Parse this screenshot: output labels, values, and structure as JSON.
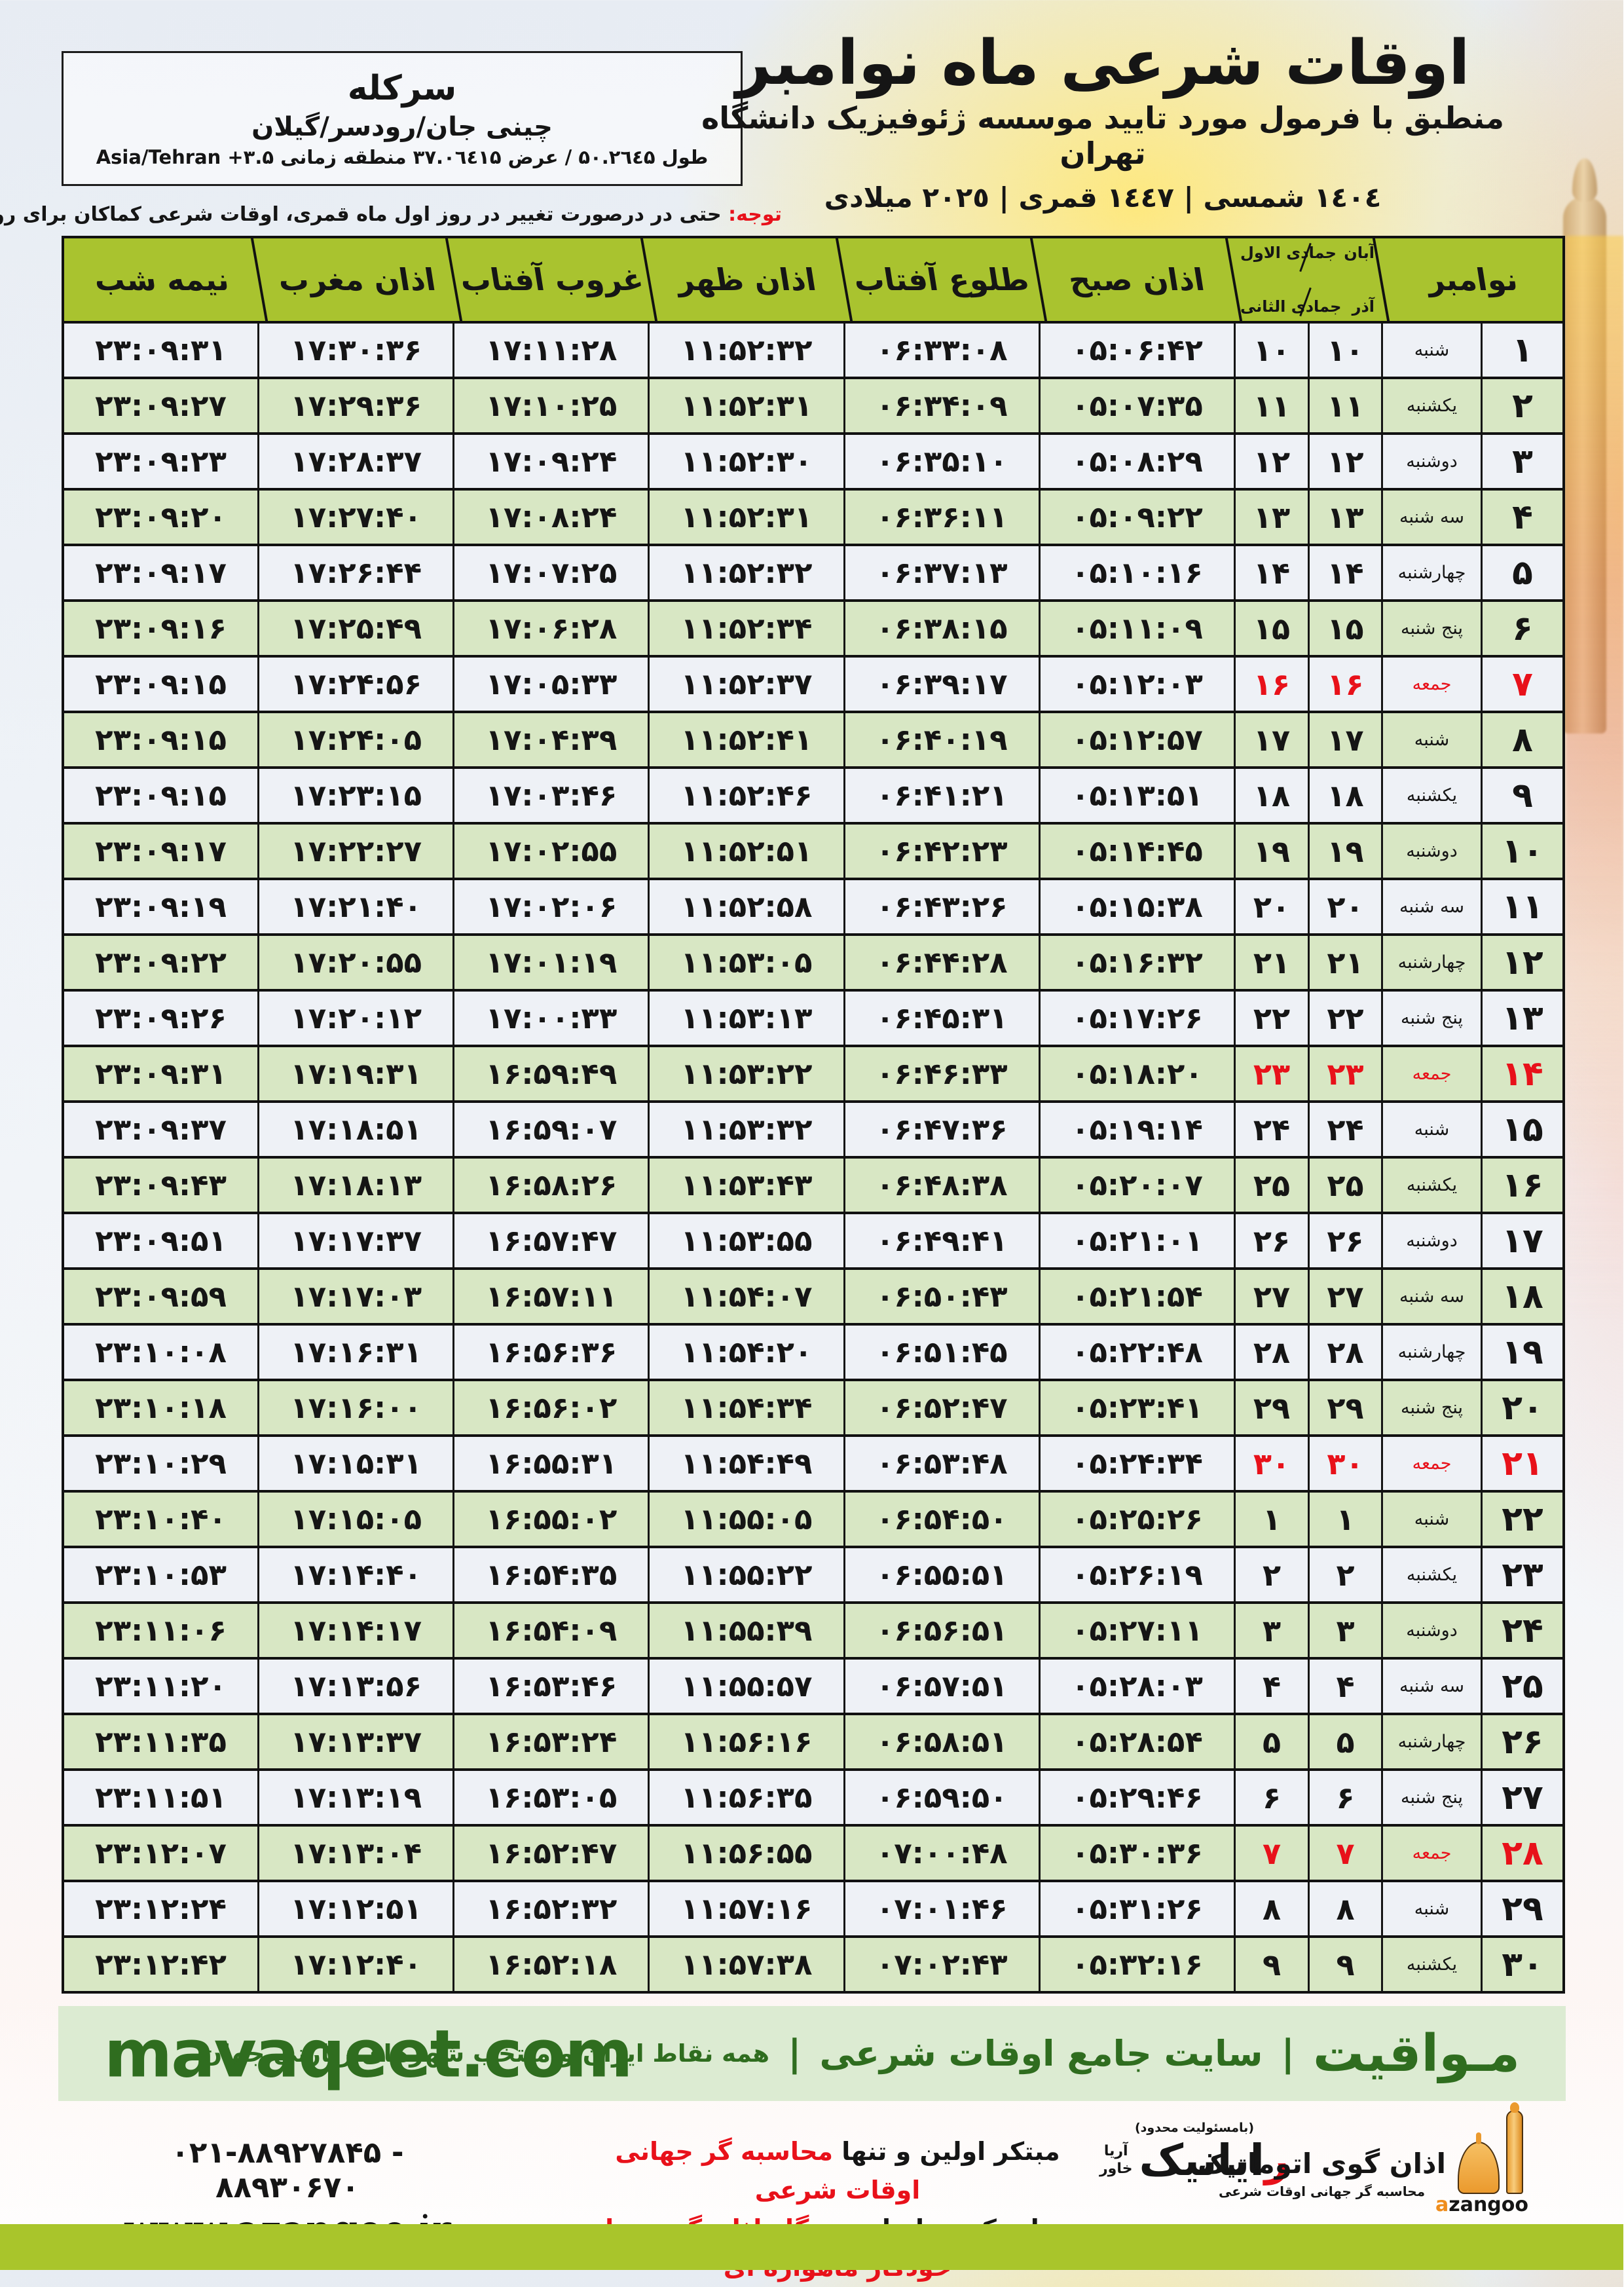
{
  "colors": {
    "friday_red": "#e8111a",
    "header_green": "#a9c32f",
    "row_green": "#d8e7c4",
    "row_light": "#eef1f6",
    "banner_green": "#dcebd2",
    "banner_text": "#2f6d1f",
    "bottom_bar": "#a9c52b"
  },
  "header": {
    "title": "اوقات شرعی ماه نوامبر",
    "subtitle": "منطبق با فرمول مورد تایید موسسه ژئوفیزیک دانشگاه تهران",
    "dates": "١٤٠٤ شمسی | ١٤٤٧ قمری | ٢٠٢٥ میلادی"
  },
  "location_box": {
    "city": "سرکله",
    "region": "چینی جان/رودسر/گیلان",
    "coords_fa": "طول ۵۰.۲٦٤۵ / عرض ۳۷.۰٦٤۱۵ منطقه زمانی ",
    "coords_tz": "Asia/Tehran +۳.۵"
  },
  "notice": {
    "label": "توجه:",
    "text": " حتی در درصورت تغییر در روز اول ماه قمری، اوقات شرعی کماکان برای روزهای شمسی و میلادی معتبر است."
  },
  "table": {
    "columns": {
      "nov": "نوامبر",
      "solar_top": "آبان",
      "lunar_top": "جمادی الاول",
      "solar_bottom": "آذر",
      "lunar_bottom": "جمادی الثانی",
      "fajr": "اذان صبح",
      "sunrise": "طلوع آفتاب",
      "noon": "اذان ظهر",
      "sunset": "غروب آفتاب",
      "maghrib": "اذان مغرب",
      "midnight": "نیمه شب"
    },
    "rows": [
      {
        "d": "۱",
        "w": "شنبه",
        "s": "۱۰",
        "l": "۱۰",
        "fajr": "۰۵:۰۶:۴۲",
        "rise": "۰۶:۳۳:۰۸",
        "noon": "۱۱:۵۲:۳۲",
        "set": "۱۷:۱۱:۲۸",
        "maghrib": "۱۷:۳۰:۳۶",
        "mid": "۲۳:۰۹:۳۱",
        "fri": false
      },
      {
        "d": "۲",
        "w": "یکشنبه",
        "s": "۱۱",
        "l": "۱۱",
        "fajr": "۰۵:۰۷:۳۵",
        "rise": "۰۶:۳۴:۰۹",
        "noon": "۱۱:۵۲:۳۱",
        "set": "۱۷:۱۰:۲۵",
        "maghrib": "۱۷:۲۹:۳۶",
        "mid": "۲۳:۰۹:۲۷",
        "fri": false
      },
      {
        "d": "۳",
        "w": "دوشنبه",
        "s": "۱۲",
        "l": "۱۲",
        "fajr": "۰۵:۰۸:۲۹",
        "rise": "۰۶:۳۵:۱۰",
        "noon": "۱۱:۵۲:۳۰",
        "set": "۱۷:۰۹:۲۴",
        "maghrib": "۱۷:۲۸:۳۷",
        "mid": "۲۳:۰۹:۲۳",
        "fri": false
      },
      {
        "d": "۴",
        "w": "سه شنبه",
        "s": "۱۳",
        "l": "۱۳",
        "fajr": "۰۵:۰۹:۲۲",
        "rise": "۰۶:۳۶:۱۱",
        "noon": "۱۱:۵۲:۳۱",
        "set": "۱۷:۰۸:۲۴",
        "maghrib": "۱۷:۲۷:۴۰",
        "mid": "۲۳:۰۹:۲۰",
        "fri": false
      },
      {
        "d": "۵",
        "w": "چهارشنبه",
        "s": "۱۴",
        "l": "۱۴",
        "fajr": "۰۵:۱۰:۱۶",
        "rise": "۰۶:۳۷:۱۳",
        "noon": "۱۱:۵۲:۳۲",
        "set": "۱۷:۰۷:۲۵",
        "maghrib": "۱۷:۲۶:۴۴",
        "mid": "۲۳:۰۹:۱۷",
        "fri": false
      },
      {
        "d": "۶",
        "w": "پنج شنبه",
        "s": "۱۵",
        "l": "۱۵",
        "fajr": "۰۵:۱۱:۰۹",
        "rise": "۰۶:۳۸:۱۵",
        "noon": "۱۱:۵۲:۳۴",
        "set": "۱۷:۰۶:۲۸",
        "maghrib": "۱۷:۲۵:۴۹",
        "mid": "۲۳:۰۹:۱۶",
        "fri": false
      },
      {
        "d": "۷",
        "w": "جمعه",
        "s": "۱۶",
        "l": "۱۶",
        "fajr": "۰۵:۱۲:۰۳",
        "rise": "۰۶:۳۹:۱۷",
        "noon": "۱۱:۵۲:۳۷",
        "set": "۱۷:۰۵:۳۳",
        "maghrib": "۱۷:۲۴:۵۶",
        "mid": "۲۳:۰۹:۱۵",
        "fri": true
      },
      {
        "d": "۸",
        "w": "شنبه",
        "s": "۱۷",
        "l": "۱۷",
        "fajr": "۰۵:۱۲:۵۷",
        "rise": "۰۶:۴۰:۱۹",
        "noon": "۱۱:۵۲:۴۱",
        "set": "۱۷:۰۴:۳۹",
        "maghrib": "۱۷:۲۴:۰۵",
        "mid": "۲۳:۰۹:۱۵",
        "fri": false
      },
      {
        "d": "۹",
        "w": "یکشنبه",
        "s": "۱۸",
        "l": "۱۸",
        "fajr": "۰۵:۱۳:۵۱",
        "rise": "۰۶:۴۱:۲۱",
        "noon": "۱۱:۵۲:۴۶",
        "set": "۱۷:۰۳:۴۶",
        "maghrib": "۱۷:۲۳:۱۵",
        "mid": "۲۳:۰۹:۱۵",
        "fri": false
      },
      {
        "d": "۱۰",
        "w": "دوشنبه",
        "s": "۱۹",
        "l": "۱۹",
        "fajr": "۰۵:۱۴:۴۵",
        "rise": "۰۶:۴۲:۲۳",
        "noon": "۱۱:۵۲:۵۱",
        "set": "۱۷:۰۲:۵۵",
        "maghrib": "۱۷:۲۲:۲۷",
        "mid": "۲۳:۰۹:۱۷",
        "fri": false
      },
      {
        "d": "۱۱",
        "w": "سه شنبه",
        "s": "۲۰",
        "l": "۲۰",
        "fajr": "۰۵:۱۵:۳۸",
        "rise": "۰۶:۴۳:۲۶",
        "noon": "۱۱:۵۲:۵۸",
        "set": "۱۷:۰۲:۰۶",
        "maghrib": "۱۷:۲۱:۴۰",
        "mid": "۲۳:۰۹:۱۹",
        "fri": false
      },
      {
        "d": "۱۲",
        "w": "چهارشنبه",
        "s": "۲۱",
        "l": "۲۱",
        "fajr": "۰۵:۱۶:۳۲",
        "rise": "۰۶:۴۴:۲۸",
        "noon": "۱۱:۵۳:۰۵",
        "set": "۱۷:۰۱:۱۹",
        "maghrib": "۱۷:۲۰:۵۵",
        "mid": "۲۳:۰۹:۲۲",
        "fri": false
      },
      {
        "d": "۱۳",
        "w": "پنج شنبه",
        "s": "۲۲",
        "l": "۲۲",
        "fajr": "۰۵:۱۷:۲۶",
        "rise": "۰۶:۴۵:۳۱",
        "noon": "۱۱:۵۳:۱۳",
        "set": "۱۷:۰۰:۳۳",
        "maghrib": "۱۷:۲۰:۱۲",
        "mid": "۲۳:۰۹:۲۶",
        "fri": false
      },
      {
        "d": "۱۴",
        "w": "جمعه",
        "s": "۲۳",
        "l": "۲۳",
        "fajr": "۰۵:۱۸:۲۰",
        "rise": "۰۶:۴۶:۳۳",
        "noon": "۱۱:۵۳:۲۲",
        "set": "۱۶:۵۹:۴۹",
        "maghrib": "۱۷:۱۹:۳۱",
        "mid": "۲۳:۰۹:۳۱",
        "fri": true
      },
      {
        "d": "۱۵",
        "w": "شنبه",
        "s": "۲۴",
        "l": "۲۴",
        "fajr": "۰۵:۱۹:۱۴",
        "rise": "۰۶:۴۷:۳۶",
        "noon": "۱۱:۵۳:۳۲",
        "set": "۱۶:۵۹:۰۷",
        "maghrib": "۱۷:۱۸:۵۱",
        "mid": "۲۳:۰۹:۳۷",
        "fri": false
      },
      {
        "d": "۱۶",
        "w": "یکشنبه",
        "s": "۲۵",
        "l": "۲۵",
        "fajr": "۰۵:۲۰:۰۷",
        "rise": "۰۶:۴۸:۳۸",
        "noon": "۱۱:۵۳:۴۳",
        "set": "۱۶:۵۸:۲۶",
        "maghrib": "۱۷:۱۸:۱۳",
        "mid": "۲۳:۰۹:۴۳",
        "fri": false
      },
      {
        "d": "۱۷",
        "w": "دوشنبه",
        "s": "۲۶",
        "l": "۲۶",
        "fajr": "۰۵:۲۱:۰۱",
        "rise": "۰۶:۴۹:۴۱",
        "noon": "۱۱:۵۳:۵۵",
        "set": "۱۶:۵۷:۴۷",
        "maghrib": "۱۷:۱۷:۳۷",
        "mid": "۲۳:۰۹:۵۱",
        "fri": false
      },
      {
        "d": "۱۸",
        "w": "سه شنبه",
        "s": "۲۷",
        "l": "۲۷",
        "fajr": "۰۵:۲۱:۵۴",
        "rise": "۰۶:۵۰:۴۳",
        "noon": "۱۱:۵۴:۰۷",
        "set": "۱۶:۵۷:۱۱",
        "maghrib": "۱۷:۱۷:۰۳",
        "mid": "۲۳:۰۹:۵۹",
        "fri": false
      },
      {
        "d": "۱۹",
        "w": "چهارشنبه",
        "s": "۲۸",
        "l": "۲۸",
        "fajr": "۰۵:۲۲:۴۸",
        "rise": "۰۶:۵۱:۴۵",
        "noon": "۱۱:۵۴:۲۰",
        "set": "۱۶:۵۶:۳۶",
        "maghrib": "۱۷:۱۶:۳۱",
        "mid": "۲۳:۱۰:۰۸",
        "fri": false
      },
      {
        "d": "۲۰",
        "w": "پنج شنبه",
        "s": "۲۹",
        "l": "۲۹",
        "fajr": "۰۵:۲۳:۴۱",
        "rise": "۰۶:۵۲:۴۷",
        "noon": "۱۱:۵۴:۳۴",
        "set": "۱۶:۵۶:۰۲",
        "maghrib": "۱۷:۱۶:۰۰",
        "mid": "۲۳:۱۰:۱۸",
        "fri": false
      },
      {
        "d": "۲۱",
        "w": "جمعه",
        "s": "۳۰",
        "l": "۳۰",
        "fajr": "۰۵:۲۴:۳۴",
        "rise": "۰۶:۵۳:۴۸",
        "noon": "۱۱:۵۴:۴۹",
        "set": "۱۶:۵۵:۳۱",
        "maghrib": "۱۷:۱۵:۳۱",
        "mid": "۲۳:۱۰:۲۹",
        "fri": true
      },
      {
        "d": "۲۲",
        "w": "شنبه",
        "s": "۱",
        "l": "۱",
        "fajr": "۰۵:۲۵:۲۶",
        "rise": "۰۶:۵۴:۵۰",
        "noon": "۱۱:۵۵:۰۵",
        "set": "۱۶:۵۵:۰۲",
        "maghrib": "۱۷:۱۵:۰۵",
        "mid": "۲۳:۱۰:۴۰",
        "fri": false
      },
      {
        "d": "۲۳",
        "w": "یکشنبه",
        "s": "۲",
        "l": "۲",
        "fajr": "۰۵:۲۶:۱۹",
        "rise": "۰۶:۵۵:۵۱",
        "noon": "۱۱:۵۵:۲۲",
        "set": "۱۶:۵۴:۳۵",
        "maghrib": "۱۷:۱۴:۴۰",
        "mid": "۲۳:۱۰:۵۳",
        "fri": false
      },
      {
        "d": "۲۴",
        "w": "دوشنبه",
        "s": "۳",
        "l": "۳",
        "fajr": "۰۵:۲۷:۱۱",
        "rise": "۰۶:۵۶:۵۱",
        "noon": "۱۱:۵۵:۳۹",
        "set": "۱۶:۵۴:۰۹",
        "maghrib": "۱۷:۱۴:۱۷",
        "mid": "۲۳:۱۱:۰۶",
        "fri": false
      },
      {
        "d": "۲۵",
        "w": "سه شنبه",
        "s": "۴",
        "l": "۴",
        "fajr": "۰۵:۲۸:۰۳",
        "rise": "۰۶:۵۷:۵۱",
        "noon": "۱۱:۵۵:۵۷",
        "set": "۱۶:۵۳:۴۶",
        "maghrib": "۱۷:۱۳:۵۶",
        "mid": "۲۳:۱۱:۲۰",
        "fri": false
      },
      {
        "d": "۲۶",
        "w": "چهارشنبه",
        "s": "۵",
        "l": "۵",
        "fajr": "۰۵:۲۸:۵۴",
        "rise": "۰۶:۵۸:۵۱",
        "noon": "۱۱:۵۶:۱۶",
        "set": "۱۶:۵۳:۲۴",
        "maghrib": "۱۷:۱۳:۳۷",
        "mid": "۲۳:۱۱:۳۵",
        "fri": false
      },
      {
        "d": "۲۷",
        "w": "پنج شنبه",
        "s": "۶",
        "l": "۶",
        "fajr": "۰۵:۲۹:۴۶",
        "rise": "۰۶:۵۹:۵۰",
        "noon": "۱۱:۵۶:۳۵",
        "set": "۱۶:۵۳:۰۵",
        "maghrib": "۱۷:۱۳:۱۹",
        "mid": "۲۳:۱۱:۵۱",
        "fri": false
      },
      {
        "d": "۲۸",
        "w": "جمعه",
        "s": "۷",
        "l": "۷",
        "fajr": "۰۵:۳۰:۳۶",
        "rise": "۰۷:۰۰:۴۸",
        "noon": "۱۱:۵۶:۵۵",
        "set": "۱۶:۵۲:۴۷",
        "maghrib": "۱۷:۱۳:۰۴",
        "mid": "۲۳:۱۲:۰۷",
        "fri": true
      },
      {
        "d": "۲۹",
        "w": "شنبه",
        "s": "۸",
        "l": "۸",
        "fajr": "۰۵:۳۱:۲۶",
        "rise": "۰۷:۰۱:۴۶",
        "noon": "۱۱:۵۷:۱۶",
        "set": "۱۶:۵۲:۳۲",
        "maghrib": "۱۷:۱۲:۵۱",
        "mid": "۲۳:۱۲:۲۴",
        "fri": false
      },
      {
        "d": "۳۰",
        "w": "یکشنبه",
        "s": "۹",
        "l": "۹",
        "fajr": "۰۵:۳۲:۱۶",
        "rise": "۰۷:۰۲:۴۳",
        "noon": "۱۱:۵۷:۳۸",
        "set": "۱۶:۵۲:۱۸",
        "maghrib": "۱۷:۱۲:۴۰",
        "mid": "۲۳:۱۲:۴۲",
        "fri": false
      }
    ]
  },
  "mavaqeet": {
    "latin": "mavaqeet.com",
    "fa1": "مـواقیت",
    "sep": "|",
    "fa2": "سایت جامع اوقات شرعی",
    "fa3": "همه نقاط ایران و منتخب شهرهای زیارتی جهان"
  },
  "footer": {
    "line1_black": "مبتکر اولین و تنها ",
    "line1_red": "محاسبه گر جهانی اوقات شرعی",
    "line2_black": "و تولید کننده انواع ",
    "line2_red": "دستگاه اذان گوی تمام خودکار ماهواره ای",
    "phone": "۰۲۱-۸۸۹۲۷۸۴۵ - ۸۸۹۳۰۶۷۰",
    "website": "www.azangoo.ir",
    "rayanik_note": "(بامسئولیت محدود)",
    "rayanik_r": "ر",
    "rayanik_rest": "ایانیک",
    "rayanik_sub1": "آریا",
    "rayanik_sub2": "خاور",
    "azangoo_title": "اذان گوی اتوماتیک",
    "azangoo_sub": "محاسبه گر جهانی اوقات شرعی",
    "azangoo_latin_a": "a",
    "azangoo_latin_rest": "zangoo"
  }
}
